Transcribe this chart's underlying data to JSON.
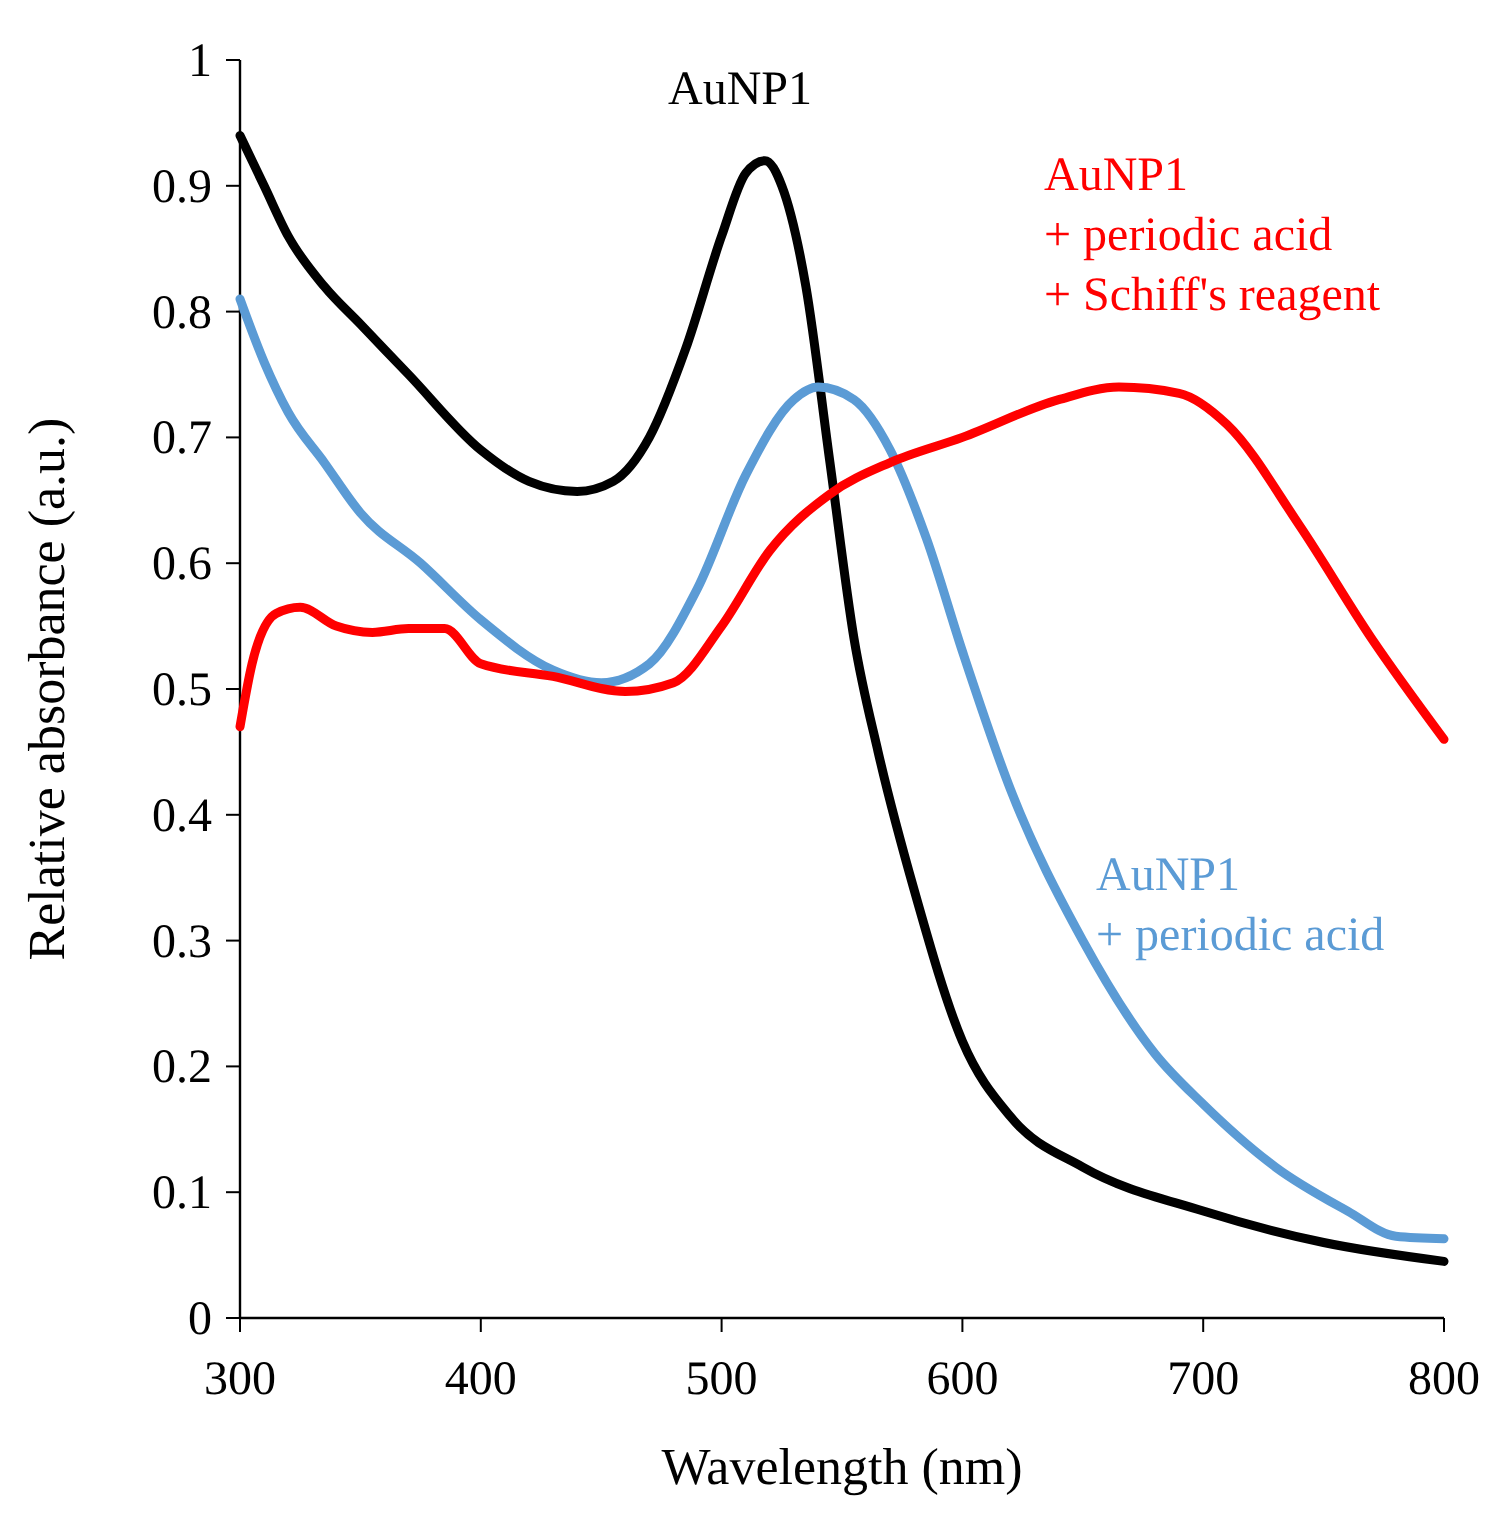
{
  "chart_data": {
    "type": "line",
    "xlabel": "Wavelength (nm)",
    "ylabel": "Relative absorbance (a.u.)",
    "xlim": [
      300,
      800
    ],
    "xticks": [
      300,
      400,
      500,
      600,
      700,
      800
    ],
    "ylim": [
      0,
      1
    ],
    "yticks": [
      0,
      0.1,
      0.2,
      0.3,
      0.4,
      0.5,
      0.6,
      0.7,
      0.8,
      0.9,
      1
    ],
    "grid": false,
    "legend": false,
    "line_style": "solid",
    "series": [
      {
        "name": "AuNP1",
        "color": "#000000",
        "x": [
          300,
          310,
          320,
          335,
          350,
          370,
          400,
          420,
          440,
          455,
          470,
          485,
          500,
          510,
          518,
          525,
          535,
          545,
          555,
          565,
          580,
          600,
          620,
          650,
          700,
          750,
          800
        ],
        "values": [
          0.94,
          0.9,
          0.86,
          0.82,
          0.79,
          0.75,
          0.69,
          0.665,
          0.657,
          0.665,
          0.7,
          0.77,
          0.86,
          0.91,
          0.92,
          0.9,
          0.82,
          0.68,
          0.54,
          0.45,
          0.34,
          0.22,
          0.16,
          0.12,
          0.085,
          0.06,
          0.045
        ]
      },
      {
        "name": "AuNP1\n+ periodic acid",
        "color": "#5b9bd5",
        "x": [
          300,
          310,
          320,
          335,
          350,
          375,
          400,
          430,
          450,
          470,
          490,
          510,
          530,
          540,
          555,
          570,
          585,
          600,
          620,
          650,
          680,
          700,
          730,
          760,
          780,
          800
        ],
        "values": [
          0.81,
          0.76,
          0.72,
          0.68,
          0.64,
          0.6,
          0.555,
          0.515,
          0.505,
          0.52,
          0.58,
          0.67,
          0.73,
          0.74,
          0.73,
          0.69,
          0.62,
          0.53,
          0.42,
          0.3,
          0.21,
          0.17,
          0.12,
          0.085,
          0.065,
          0.063
        ]
      },
      {
        "name": "AuNP1\n+ periodic acid\n+ Schiff's reagent",
        "color": "#ff0000",
        "x": [
          300,
          305,
          315,
          325,
          340,
          355,
          370,
          385,
          400,
          430,
          460,
          480,
          500,
          520,
          545,
          570,
          600,
          640,
          665,
          690,
          710,
          740,
          770,
          800
        ],
        "values": [
          0.47,
          0.52,
          0.56,
          0.565,
          0.55,
          0.545,
          0.548,
          0.548,
          0.52,
          0.51,
          0.498,
          0.505,
          0.55,
          0.61,
          0.655,
          0.68,
          0.7,
          0.73,
          0.74,
          0.735,
          0.71,
          0.63,
          0.54,
          0.46
        ]
      }
    ]
  }
}
